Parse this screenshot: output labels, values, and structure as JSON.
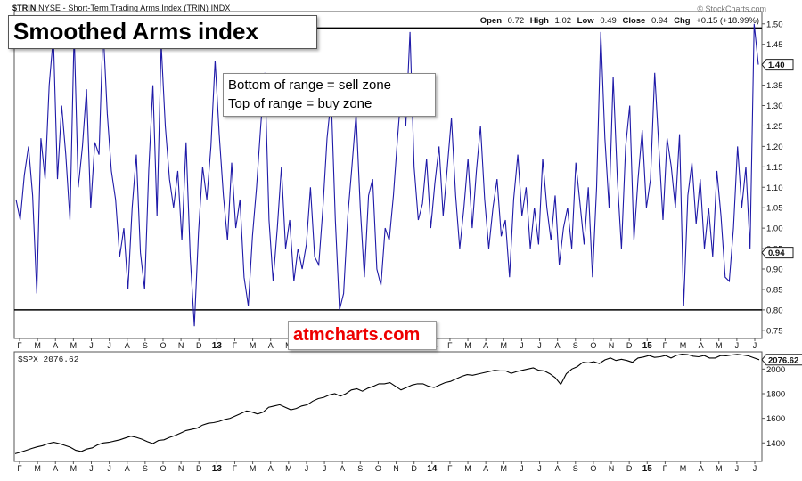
{
  "header": {
    "symbol": "$TRIN",
    "description": "NYSE - Short-Term Trading Arms Index (TRIN) INDX",
    "brand": "© StockCharts.com",
    "stats": [
      {
        "label": "Open",
        "value": "0.72"
      },
      {
        "label": "High",
        "value": "1.02"
      },
      {
        "label": "Low",
        "value": "0.49"
      },
      {
        "label": "Close",
        "value": "0.94"
      },
      {
        "label": "Chg",
        "value": "+0.15 (+18.99%)"
      }
    ]
  },
  "annotations": {
    "title": "Smoothed Arms index",
    "note_line1": "Bottom of range = sell zone",
    "note_line2": "Top of range = buy zone",
    "watermark": "atmcharts.com"
  },
  "colors": {
    "trin_line": "#1f1aa8",
    "spx_line": "#000000",
    "reference_line": "#000000"
  },
  "chart_data": [
    {
      "type": "line",
      "name": "$TRIN smoothed",
      "ylim": [
        0.73,
        1.53
      ],
      "yticks": [
        0.75,
        0.8,
        0.85,
        0.9,
        0.95,
        1.0,
        1.05,
        1.1,
        1.15,
        1.2,
        1.25,
        1.3,
        1.35,
        1.4,
        1.45,
        1.5
      ],
      "reference_lines": [
        1.49,
        0.8
      ],
      "last_value_labels": [
        "1.40",
        "0.94"
      ],
      "x_ticks": [
        "F",
        "M",
        "A",
        "M",
        "J",
        "J",
        "A",
        "S",
        "O",
        "N",
        "D",
        "13",
        "F",
        "M",
        "A",
        "M",
        "J",
        "J",
        "A",
        "S",
        "O",
        "N",
        "D",
        "14",
        "F",
        "M",
        "A",
        "M",
        "J",
        "J",
        "A",
        "S",
        "O",
        "N",
        "D",
        "15",
        "F",
        "M",
        "A",
        "M",
        "J",
        "J"
      ],
      "values": [
        1.07,
        1.02,
        1.13,
        1.2,
        1.08,
        0.84,
        1.22,
        1.12,
        1.35,
        1.47,
        1.12,
        1.3,
        1.18,
        1.02,
        1.48,
        1.1,
        1.2,
        1.34,
        1.05,
        1.21,
        1.18,
        1.49,
        1.28,
        1.14,
        1.07,
        0.93,
        1.0,
        0.85,
        1.05,
        1.18,
        0.94,
        0.85,
        1.14,
        1.35,
        1.03,
        1.45,
        1.25,
        1.12,
        1.05,
        1.14,
        0.97,
        1.21,
        0.93,
        0.76,
        0.99,
        1.15,
        1.07,
        1.2,
        1.41,
        1.23,
        1.08,
        0.97,
        1.16,
        1.0,
        1.07,
        0.88,
        0.81,
        0.98,
        1.1,
        1.25,
        1.38,
        1.02,
        0.87,
        1.0,
        1.15,
        0.95,
        1.02,
        0.87,
        0.95,
        0.9,
        0.96,
        1.1,
        0.93,
        0.91,
        1.05,
        1.22,
        1.32,
        1.02,
        0.8,
        0.84,
        1.03,
        1.15,
        1.28,
        1.05,
        0.88,
        1.08,
        1.12,
        0.9,
        0.86,
        1.0,
        0.97,
        1.08,
        1.22,
        1.35,
        1.25,
        1.48,
        1.15,
        1.02,
        1.06,
        1.17,
        1.0,
        1.11,
        1.2,
        1.03,
        1.15,
        1.27,
        1.08,
        0.95,
        1.05,
        1.17,
        1.0,
        1.14,
        1.25,
        1.07,
        0.95,
        1.05,
        1.12,
        0.98,
        1.02,
        0.88,
        1.07,
        1.18,
        1.03,
        1.1,
        0.95,
        1.05,
        0.96,
        1.17,
        1.05,
        0.97,
        1.08,
        0.91,
        1.0,
        1.05,
        0.95,
        1.16,
        1.06,
        0.96,
        1.1,
        0.88,
        1.1,
        1.48,
        1.22,
        1.05,
        1.37,
        1.12,
        0.95,
        1.2,
        1.3,
        0.97,
        1.12,
        1.24,
        1.05,
        1.12,
        1.38,
        1.2,
        1.02,
        1.22,
        1.15,
        1.05,
        1.23,
        0.81,
        1.08,
        1.16,
        1.01,
        1.12,
        0.95,
        1.05,
        0.93,
        1.14,
        1.03,
        0.88,
        0.87,
        1.0,
        1.2,
        1.05,
        1.15,
        0.95,
        1.5,
        1.4
      ]
    },
    {
      "type": "line",
      "name": "$SPX",
      "label": "$SPX 2076.62",
      "last_value_label": "2076.62",
      "ylim": [
        1250,
        2140
      ],
      "yticks": [
        1400,
        1600,
        1800,
        2000
      ],
      "x_ticks": [
        "F",
        "M",
        "A",
        "M",
        "J",
        "J",
        "A",
        "S",
        "O",
        "N",
        "D",
        "13",
        "F",
        "M",
        "A",
        "M",
        "J",
        "J",
        "A",
        "S",
        "O",
        "N",
        "D",
        "14",
        "F",
        "M",
        "A",
        "M",
        "J",
        "J",
        "A",
        "S",
        "O",
        "N",
        "D",
        "15",
        "F",
        "M",
        "A",
        "M",
        "J",
        "J"
      ],
      "values": [
        1312,
        1325,
        1340,
        1355,
        1368,
        1378,
        1395,
        1405,
        1395,
        1380,
        1365,
        1340,
        1330,
        1350,
        1360,
        1385,
        1400,
        1405,
        1415,
        1425,
        1440,
        1455,
        1445,
        1430,
        1410,
        1395,
        1420,
        1425,
        1445,
        1460,
        1480,
        1500,
        1510,
        1520,
        1545,
        1560,
        1565,
        1575,
        1590,
        1600,
        1620,
        1640,
        1660,
        1650,
        1635,
        1650,
        1690,
        1700,
        1710,
        1690,
        1670,
        1680,
        1700,
        1710,
        1740,
        1760,
        1770,
        1790,
        1800,
        1780,
        1800,
        1830,
        1840,
        1820,
        1845,
        1860,
        1880,
        1880,
        1890,
        1860,
        1830,
        1850,
        1870,
        1880,
        1880,
        1860,
        1850,
        1870,
        1890,
        1900,
        1920,
        1940,
        1955,
        1950,
        1960,
        1970,
        1980,
        1990,
        1985,
        1985,
        1965,
        1980,
        1990,
        2000,
        2010,
        1990,
        1985,
        1962,
        1930,
        1875,
        1962,
        2000,
        2020,
        2055,
        2050,
        2060,
        2045,
        2075,
        2090,
        2070,
        2080,
        2070,
        2055,
        2090,
        2098,
        2110,
        2095,
        2100,
        2110,
        2090,
        2112,
        2122,
        2118,
        2105,
        2100,
        2110,
        2090,
        2090,
        2110,
        2108,
        2115,
        2120,
        2115,
        2108,
        2092,
        2076
      ]
    }
  ]
}
